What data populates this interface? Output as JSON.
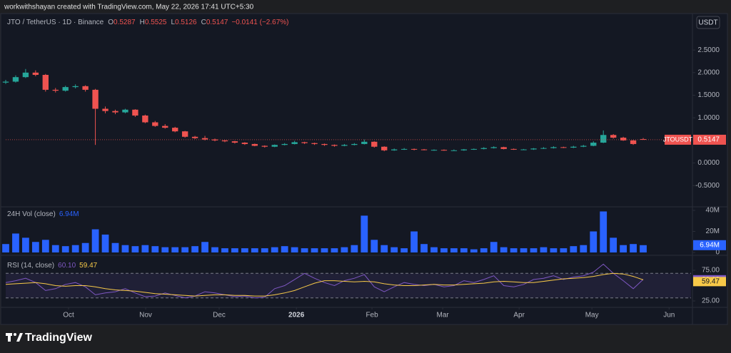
{
  "header": {
    "credit": "workwithshayan created with TradingView.com, May 22, 2026 17:41 UTC+5:30",
    "logo": "TradingView"
  },
  "chart_data": [
    {
      "type": "candlestick",
      "title": "JTO / TetherUS · 1D · Binance",
      "currency": "USDT",
      "symbol_label": "JTOUSDT",
      "ohlc_labels": [
        "O",
        "H",
        "L",
        "C"
      ],
      "change": "−0.0141 (−2.67%)",
      "up_color": "#26a69a",
      "down_color": "#ef5350",
      "categories": [
        null,
        null,
        null,
        null,
        null,
        null,
        null,
        null,
        null,
        null,
        null,
        null,
        null,
        null,
        null,
        null,
        null,
        null,
        null,
        null,
        null,
        null,
        null,
        null,
        null,
        null,
        null,
        null,
        null,
        null,
        null,
        null,
        null,
        null,
        null,
        null,
        null,
        null,
        null,
        null,
        null,
        null,
        null,
        null,
        null,
        null,
        null,
        null,
        null,
        null,
        null,
        null,
        null,
        null,
        null,
        null,
        null,
        null,
        null,
        null,
        null,
        null,
        null,
        null,
        null
      ],
      "xlim": [
        0,
        68.8
      ],
      "xticks": [
        {
          "value": 6.31,
          "label": "Oct"
        },
        {
          "value": 14.05,
          "label": "Nov"
        },
        {
          "value": 21.43,
          "label": "Dec"
        },
        {
          "value": 29.18,
          "label": "2026"
        },
        {
          "value": 36.77,
          "label": "Feb"
        },
        {
          "value": 43.87,
          "label": "Mar"
        },
        {
          "value": 51.54,
          "label": "Apr"
        },
        {
          "value": 58.85,
          "label": "May"
        },
        {
          "value": 66.6,
          "label": "Jun"
        }
      ],
      "ylim": [
        -0.97,
        3.26
      ],
      "yticks": [
        {
          "value": 2.5,
          "label": "2.5000"
        },
        {
          "value": 2,
          "label": "2.0000"
        },
        {
          "value": 1.5,
          "label": "1.5000"
        },
        {
          "value": 1,
          "label": "1.0000"
        },
        {
          "value": 0.5,
          "label": "0.5000"
        },
        {
          "value": 0,
          "label": "0.0000"
        },
        {
          "value": -0.5,
          "label": "-0.5000"
        }
      ],
      "ohlc": [
        [
          1.78,
          1.84,
          1.75,
          1.8
        ],
        [
          1.8,
          1.94,
          1.78,
          1.9
        ],
        [
          1.9,
          2.08,
          1.88,
          2.0
        ],
        [
          2.0,
          2.05,
          1.92,
          1.95
        ],
        [
          1.95,
          1.97,
          1.58,
          1.62
        ],
        [
          1.62,
          1.66,
          1.56,
          1.6
        ],
        [
          1.6,
          1.71,
          1.58,
          1.68
        ],
        [
          1.68,
          1.74,
          1.65,
          1.7
        ],
        [
          1.7,
          1.72,
          1.58,
          1.62
        ],
        [
          1.62,
          1.64,
          0.4,
          1.2
        ],
        [
          1.2,
          1.25,
          1.1,
          1.15
        ],
        [
          1.15,
          1.18,
          1.08,
          1.12
        ],
        [
          1.12,
          1.2,
          1.1,
          1.18
        ],
        [
          1.18,
          1.19,
          1.02,
          1.05
        ],
        [
          1.05,
          1.07,
          0.88,
          0.9
        ],
        [
          0.9,
          0.93,
          0.8,
          0.82
        ],
        [
          0.82,
          0.86,
          0.76,
          0.78
        ],
        [
          0.78,
          0.8,
          0.68,
          0.7
        ],
        [
          0.7,
          0.71,
          0.56,
          0.58
        ],
        [
          0.58,
          0.6,
          0.53,
          0.55
        ],
        [
          0.55,
          0.6,
          0.5,
          0.52
        ],
        [
          0.52,
          0.54,
          0.48,
          0.5
        ],
        [
          0.5,
          0.51,
          0.46,
          0.48
        ],
        [
          0.48,
          0.49,
          0.43,
          0.45
        ],
        [
          0.45,
          0.46,
          0.4,
          0.42
        ],
        [
          0.42,
          0.43,
          0.37,
          0.38
        ],
        [
          0.38,
          0.39,
          0.34,
          0.36
        ],
        [
          0.36,
          0.41,
          0.35,
          0.4
        ],
        [
          0.4,
          0.44,
          0.39,
          0.42
        ],
        [
          0.42,
          0.49,
          0.41,
          0.46
        ],
        [
          0.46,
          0.47,
          0.42,
          0.44
        ],
        [
          0.44,
          0.45,
          0.4,
          0.42
        ],
        [
          0.42,
          0.43,
          0.38,
          0.4
        ],
        [
          0.4,
          0.41,
          0.36,
          0.38
        ],
        [
          0.38,
          0.42,
          0.37,
          0.4
        ],
        [
          0.4,
          0.44,
          0.39,
          0.42
        ],
        [
          0.42,
          0.52,
          0.41,
          0.47
        ],
        [
          0.47,
          0.48,
          0.34,
          0.36
        ],
        [
          0.36,
          0.37,
          0.26,
          0.28
        ],
        [
          0.28,
          0.32,
          0.27,
          0.3
        ],
        [
          0.3,
          0.33,
          0.29,
          0.31
        ],
        [
          0.31,
          0.32,
          0.28,
          0.3
        ],
        [
          0.3,
          0.31,
          0.28,
          0.29
        ],
        [
          0.29,
          0.3,
          0.27,
          0.29
        ],
        [
          0.29,
          0.3,
          0.27,
          0.28
        ],
        [
          0.28,
          0.3,
          0.27,
          0.28
        ],
        [
          0.28,
          0.31,
          0.27,
          0.3
        ],
        [
          0.3,
          0.32,
          0.29,
          0.31
        ],
        [
          0.31,
          0.35,
          0.3,
          0.33
        ],
        [
          0.33,
          0.37,
          0.32,
          0.35
        ],
        [
          0.35,
          0.36,
          0.3,
          0.31
        ],
        [
          0.31,
          0.32,
          0.29,
          0.3
        ],
        [
          0.3,
          0.31,
          0.29,
          0.3
        ],
        [
          0.3,
          0.33,
          0.29,
          0.32
        ],
        [
          0.32,
          0.35,
          0.31,
          0.33
        ],
        [
          0.33,
          0.37,
          0.32,
          0.35
        ],
        [
          0.35,
          0.36,
          0.33,
          0.34
        ],
        [
          0.34,
          0.38,
          0.33,
          0.36
        ],
        [
          0.36,
          0.4,
          0.35,
          0.38
        ],
        [
          0.38,
          0.48,
          0.37,
          0.45
        ],
        [
          0.45,
          0.72,
          0.44,
          0.62
        ],
        [
          0.62,
          0.64,
          0.54,
          0.56
        ],
        [
          0.56,
          0.58,
          0.49,
          0.5
        ],
        [
          0.5,
          0.51,
          0.4,
          0.42
        ],
        [
          0.5287,
          0.5525,
          0.5126,
          0.5147
        ]
      ]
    },
    {
      "type": "bar",
      "title": "24H Vol (close)",
      "color": "#2962ff",
      "ylim": [
        -2700000,
        43400000
      ],
      "yticks": [
        {
          "value": 40000000,
          "label": "40M"
        },
        {
          "value": 20000000,
          "label": "20M"
        },
        0
      ],
      "values": [
        8000000,
        18000000,
        14000000,
        10000000,
        12000000,
        7000000,
        6000000,
        7000000,
        9000000,
        22000000,
        17000000,
        9000000,
        7000000,
        6000000,
        7000000,
        6000000,
        5000000,
        5000000,
        5000000,
        6000000,
        10000000,
        5000000,
        4000000,
        4000000,
        4000000,
        4000000,
        4000000,
        5000000,
        6000000,
        5000000,
        4000000,
        4000000,
        4000000,
        4000000,
        5000000,
        7000000,
        35000000,
        12000000,
        7000000,
        5000000,
        4000000,
        20000000,
        8000000,
        5000000,
        4000000,
        4000000,
        4000000,
        3000000,
        4000000,
        10000000,
        5000000,
        4000000,
        4000000,
        4000000,
        5000000,
        4000000,
        4000000,
        6000000,
        7000000,
        20000000,
        39000000,
        14000000,
        7000000,
        8000000,
        6940000
      ],
      "value_labels": [
        null,
        null,
        null,
        null,
        null,
        null,
        null,
        null,
        null,
        null,
        null,
        null,
        null,
        null,
        null,
        null,
        null,
        null,
        null,
        null,
        null,
        null,
        null,
        null,
        null,
        null,
        null,
        null,
        null,
        null,
        null,
        null,
        null,
        null,
        null,
        null,
        null,
        null,
        null,
        null,
        null,
        null,
        null,
        null,
        null,
        null,
        null,
        null,
        null,
        null,
        null,
        null,
        null,
        null,
        null,
        null,
        null,
        null,
        null,
        null,
        null,
        null,
        null,
        null,
        "6.94M"
      ]
    },
    {
      "type": "line",
      "title": "RSI (14, close)",
      "band": [
        30,
        70
      ],
      "ylim": [
        15.7,
        97.1
      ],
      "yticks": [
        {
          "value": 75,
          "label": "75.00"
        },
        {
          "value": 25,
          "label": "25.00"
        }
      ],
      "series": [
        {
          "color": "#7e57c2",
          "values": [
            55,
            58,
            62,
            55,
            42,
            45,
            52,
            55,
            48,
            35,
            38,
            40,
            45,
            38,
            32,
            33,
            38,
            34,
            30,
            33,
            40,
            38,
            35,
            32,
            33,
            30,
            31,
            45,
            50,
            60,
            70,
            62,
            55,
            50,
            58,
            62,
            68,
            48,
            40,
            48,
            55,
            52,
            50,
            52,
            48,
            50,
            58,
            55,
            60,
            66,
            50,
            48,
            52,
            60,
            62,
            66,
            60,
            64,
            66,
            72,
            85,
            70,
            58,
            45,
            60.1
          ],
          "value_labels": [
            null,
            null,
            null,
            null,
            null,
            null,
            null,
            null,
            null,
            null,
            null,
            null,
            null,
            null,
            null,
            null,
            null,
            null,
            null,
            null,
            null,
            null,
            null,
            null,
            null,
            null,
            null,
            null,
            null,
            null,
            null,
            null,
            null,
            null,
            null,
            null,
            null,
            null,
            null,
            null,
            null,
            null,
            null,
            null,
            null,
            null,
            null,
            null,
            null,
            null,
            null,
            null,
            null,
            null,
            null,
            null,
            null,
            null,
            null,
            null,
            null,
            null,
            null,
            null,
            "60.10"
          ]
        },
        {
          "color": "#f7c948",
          "values": [
            52,
            53,
            54,
            55,
            53,
            50,
            49,
            50,
            50,
            48,
            45,
            43,
            42,
            41,
            39,
            37,
            36,
            35,
            34,
            33,
            34,
            35,
            35,
            34,
            34,
            33,
            33,
            35,
            38,
            42,
            48,
            54,
            58,
            58,
            57,
            56,
            57,
            56,
            53,
            51,
            50,
            50,
            51,
            52,
            51,
            51,
            52,
            53,
            54,
            56,
            57,
            56,
            55,
            55,
            57,
            59,
            61,
            62,
            63,
            65,
            68,
            70,
            69,
            65,
            59.47
          ]
        }
      ]
    }
  ]
}
